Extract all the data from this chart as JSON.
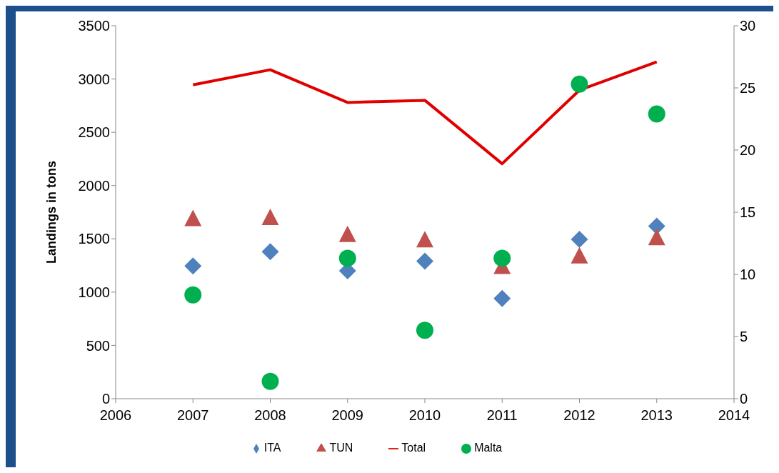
{
  "chart_data": {
    "type": "scatter",
    "ylabel": "Landings in tons",
    "x": [
      2007,
      2008,
      2009,
      2010,
      2011,
      2012,
      2013
    ],
    "xlim": [
      2006,
      2014
    ],
    "xticks": [
      2006,
      2007,
      2008,
      2009,
      2010,
      2011,
      2012,
      2013,
      2014
    ],
    "ylim": [
      0,
      3500
    ],
    "yticks": [
      0,
      500,
      1000,
      1500,
      2000,
      2500,
      3000,
      3500
    ],
    "y2lim": [
      0,
      30
    ],
    "y2ticks": [
      0,
      5,
      10,
      15,
      20,
      25,
      30
    ],
    "grid": false,
    "legend": "bottom",
    "series": [
      {
        "name": "ITA",
        "marker": "diamond",
        "color": "#4f81bd",
        "values": [
          1245,
          1380,
          1200,
          1290,
          940,
          1495,
          1620
        ]
      },
      {
        "name": "TUN",
        "marker": "triangle",
        "color": "#c0504d",
        "values": [
          1680,
          1690,
          1530,
          1480,
          1230,
          1330,
          1500
        ]
      },
      {
        "name": "Total",
        "type": "line",
        "marker": "none",
        "color": "#e00000",
        "values": [
          2945,
          3087,
          2780,
          2800,
          2205,
          2895,
          3160
        ]
      },
      {
        "name": "Malta",
        "marker": "circle",
        "axis": "y2",
        "color": "#00b050",
        "values": [
          8.35,
          1.4,
          11.3,
          5.5,
          11.3,
          25.3,
          22.9
        ]
      }
    ]
  }
}
